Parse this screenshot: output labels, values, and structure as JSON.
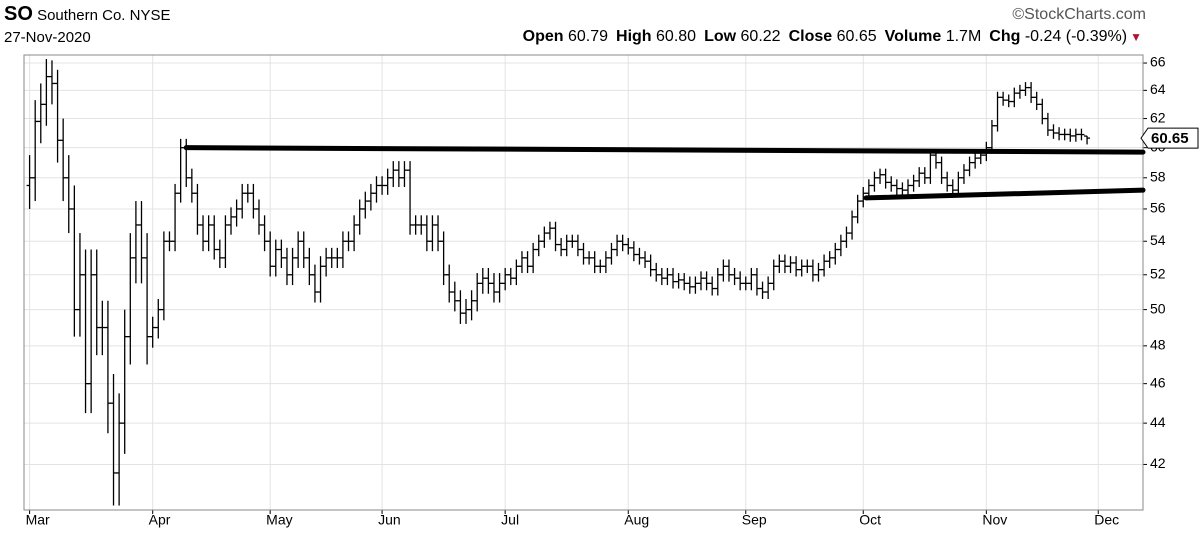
{
  "header": {
    "symbol": "SO",
    "name": "Southern Co.",
    "exchange": "NYSE",
    "source": "©StockCharts.com",
    "date": "27-Nov-2020",
    "stats": [
      {
        "label": "Open",
        "value": "60.79"
      },
      {
        "label": "High",
        "value": "60.80"
      },
      {
        "label": "Low",
        "value": "60.22"
      },
      {
        "label": "Close",
        "value": "60.65"
      },
      {
        "label": "Volume",
        "value": "1.7M"
      },
      {
        "label": "Chg",
        "value": "-0.24 (-0.39%)"
      }
    ]
  },
  "chart_data": {
    "type": "ohlc",
    "color": "#000000",
    "log_scale": true,
    "grid": true,
    "xlim": [
      -1,
      199
    ],
    "ylim": [
      39.9,
      66.6
    ],
    "yticks": [
      42,
      44,
      46,
      48,
      50,
      52,
      54,
      56,
      58,
      60,
      62,
      64,
      66
    ],
    "xticks": [
      {
        "value": 0,
        "label": "Mar"
      },
      {
        "value": 22,
        "label": "Apr"
      },
      {
        "value": 43,
        "label": "May"
      },
      {
        "value": 63,
        "label": "Jun"
      },
      {
        "value": 85,
        "label": "Jul"
      },
      {
        "value": 107,
        "label": "Aug"
      },
      {
        "value": 128,
        "label": "Sep"
      },
      {
        "value": 149,
        "label": "Oct"
      },
      {
        "value": 171,
        "label": "Nov"
      },
      {
        "value": 191,
        "label": "Dec"
      }
    ],
    "open": [
      57.5,
      58,
      61.8,
      63,
      65,
      64.5,
      60.5,
      58,
      56,
      50,
      52,
      46,
      52,
      49,
      49,
      45,
      41.6,
      44,
      48.5,
      53,
      55,
      53,
      48.5,
      49,
      50,
      54,
      54,
      57,
      60,
      58,
      57,
      55,
      54,
      55,
      53.5,
      53,
      55,
      55.5,
      56,
      57,
      57,
      56,
      55,
      54,
      52.5,
      53.5,
      53,
      52,
      53,
      54,
      53,
      52,
      51,
      52.5,
      53,
      53,
      53,
      54,
      54,
      55,
      56,
      56.5,
      57,
      57.5,
      57.5,
      58,
      58.5,
      58,
      58.5,
      55,
      55,
      55,
      54,
      55,
      54,
      52,
      51,
      50.5,
      49.8,
      50,
      50.5,
      51.5,
      51.8,
      51.5,
      51,
      51.5,
      52,
      51.8,
      52.5,
      53,
      52.5,
      53.5,
      54,
      54.5,
      54.8,
      53.8,
      53.5,
      54,
      54,
      53.5,
      53,
      53,
      52.5,
      52.5,
      53,
      53.5,
      54,
      53.8,
      53.6,
      53.2,
      53,
      52.8,
      52.3,
      52,
      51.8,
      52,
      51.6,
      51.7,
      51.5,
      51.3,
      51.5,
      51.8,
      51.5,
      51.2,
      52,
      52.5,
      52,
      51.8,
      51.5,
      51.5,
      52,
      51.2,
      51,
      51.5,
      52.5,
      52.8,
      52.5,
      52.7,
      52.3,
      52.5,
      52.5,
      52,
      52.3,
      52.8,
      53,
      53.5,
      54,
      54.5,
      55.5,
      56.5,
      57,
      57.5,
      58,
      58.2,
      57.7,
      57.5,
      57.3,
      57.2,
      57.5,
      57.8,
      58.3,
      58,
      59.5,
      59,
      58,
      57.5,
      57.2,
      58,
      58.5,
      59,
      59.3,
      59.5,
      60,
      61.5,
      63.5,
      63.3,
      63.2,
      63.8,
      64,
      64.2,
      63.5,
      63,
      62,
      61.2,
      61,
      60.9,
      60.9,
      60.8,
      60.9,
      60.79
    ],
    "high": [
      59.5,
      63.3,
      64.5,
      66.3,
      66.2,
      65.5,
      62,
      59.5,
      57.5,
      54.5,
      53.5,
      53.5,
      53.5,
      50.5,
      50.5,
      46.5,
      45.5,
      50,
      54.5,
      56.5,
      56.5,
      54.5,
      49.6,
      50.6,
      54.6,
      54.6,
      57.6,
      60.6,
      60.6,
      58.6,
      57.6,
      55.6,
      55.6,
      55.6,
      54.1,
      55.6,
      56.1,
      56.6,
      57.6,
      57.6,
      57.6,
      56.6,
      55.6,
      54.6,
      54.1,
      54.1,
      53.6,
      53.6,
      54.6,
      54.6,
      53.6,
      52.6,
      53.1,
      53.6,
      53.6,
      53.6,
      54.6,
      54.6,
      55.6,
      56.6,
      57.1,
      57.6,
      58.1,
      58.1,
      58.6,
      59.1,
      59.1,
      59.1,
      59.1,
      55.6,
      55.6,
      55.6,
      55.6,
      55.6,
      54.6,
      52.6,
      51.6,
      51.1,
      50.6,
      51.1,
      52.1,
      52.4,
      52.4,
      52.1,
      52.1,
      52.4,
      52.4,
      52.9,
      53.4,
      53.4,
      53.9,
      54.4,
      54.9,
      55.2,
      55.2,
      54.2,
      54.4,
      54.4,
      54.4,
      53.9,
      53.4,
      53.4,
      52.9,
      53.4,
      53.9,
      54.4,
      54.4,
      54.2,
      54,
      53.6,
      53.4,
      53.2,
      52.7,
      52.4,
      52.4,
      52.4,
      52.1,
      52.1,
      51.9,
      51.9,
      52.2,
      52.2,
      51.9,
      52.4,
      52.9,
      52.9,
      52.4,
      52.2,
      51.9,
      52.4,
      52.4,
      51.6,
      51.9,
      52.9,
      53.2,
      53.2,
      53.1,
      53.1,
      52.9,
      52.9,
      52.9,
      52.7,
      53.2,
      53.4,
      53.9,
      54.4,
      54.9,
      55.9,
      56.9,
      57.4,
      57.9,
      58.4,
      58.6,
      58.6,
      58.1,
      57.9,
      57.7,
      57.9,
      58.2,
      58.7,
      58.7,
      59.9,
      59.9,
      59.4,
      58.4,
      57.9,
      58.4,
      58.9,
      59.4,
      59.7,
      59.9,
      60.4,
      61.9,
      63.9,
      63.9,
      63.7,
      64.2,
      64.4,
      64.6,
      64.6,
      63.9,
      63.4,
      62.4,
      61.6,
      61.4,
      61.3,
      61.3,
      61.3,
      61.3,
      60.8
    ],
    "low": [
      56,
      56.5,
      60.3,
      61.5,
      63,
      59,
      56.5,
      54.5,
      48.5,
      48.5,
      44.5,
      44.5,
      47.5,
      47.5,
      43.5,
      40.1,
      40.1,
      42.5,
      47,
      51.5,
      51.5,
      47,
      47.9,
      48.4,
      49.4,
      53.4,
      53.4,
      56.4,
      57.4,
      56.4,
      54.4,
      53.4,
      53.4,
      52.9,
      52.4,
      52.4,
      54.4,
      54.9,
      55.4,
      56.4,
      55.4,
      54.4,
      53.4,
      51.9,
      51.9,
      52.4,
      51.4,
      51.4,
      52.4,
      52.4,
      51.4,
      50.4,
      50.4,
      51.9,
      52.4,
      52.4,
      52.4,
      53.4,
      53.4,
      54.4,
      55.4,
      55.9,
      56.4,
      56.9,
      56.9,
      57.4,
      57.4,
      57.4,
      54.4,
      54.4,
      54.4,
      53.4,
      53.4,
      53.4,
      51.4,
      50.4,
      49.9,
      49.2,
      49.2,
      49.4,
      49.9,
      50.9,
      50.9,
      50.4,
      50.4,
      51.1,
      51.4,
      51.4,
      52.1,
      52.1,
      52.1,
      53.1,
      53.6,
      54.1,
      53.4,
      53.1,
      53.1,
      53.6,
      53.1,
      52.6,
      52.6,
      52.1,
      52.1,
      52.1,
      52.6,
      53.1,
      53.4,
      53.2,
      52.8,
      52.6,
      52.4,
      51.9,
      51.6,
      51.4,
      51.4,
      51.2,
      51.2,
      51.1,
      50.9,
      50.9,
      51.1,
      51.1,
      50.8,
      50.8,
      51.6,
      51.6,
      51.4,
      51.1,
      51.1,
      51.1,
      50.8,
      50.6,
      50.6,
      51.1,
      52.1,
      52.1,
      52.1,
      51.9,
      51.9,
      52.1,
      51.6,
      51.6,
      51.9,
      52.4,
      52.6,
      53.1,
      53.6,
      54.1,
      55.1,
      56.1,
      56.6,
      57.1,
      57.6,
      57.3,
      57.1,
      56.9,
      56.8,
      56.8,
      57.1,
      57.4,
      57.6,
      57.6,
      58.6,
      57.6,
      57.1,
      56.8,
      56.8,
      57.6,
      58.1,
      58.6,
      58.9,
      59.1,
      59.6,
      61.1,
      62.9,
      62.8,
      62.8,
      63.4,
      63.6,
      63.1,
      62.6,
      61.6,
      60.8,
      60.6,
      60.5,
      60.5,
      60.4,
      60.4,
      60.5,
      60.22
    ],
    "close": [
      58,
      61.8,
      63,
      65,
      64.5,
      60.5,
      58,
      56,
      50,
      52,
      46,
      52,
      49,
      49,
      45,
      41.6,
      44,
      48.5,
      53,
      55,
      53,
      48.5,
      49,
      50,
      54,
      54,
      57,
      60,
      58,
      57,
      55,
      54,
      55,
      53.5,
      53,
      55,
      55.5,
      56,
      57,
      57,
      56,
      55,
      54,
      52.5,
      53.5,
      53,
      52,
      53,
      54,
      53,
      52,
      51,
      52.5,
      53,
      53,
      53,
      54,
      54,
      55,
      56,
      56.5,
      57,
      57.5,
      57.5,
      58,
      58.5,
      58,
      58.5,
      55,
      55,
      55,
      54,
      55,
      54,
      52,
      51,
      50.5,
      49.8,
      50,
      50.5,
      51.5,
      51.8,
      51.5,
      51,
      51.5,
      52,
      51.8,
      52.5,
      53,
      52.5,
      53.5,
      54,
      54.5,
      54.8,
      53.8,
      53.5,
      54,
      54,
      53.5,
      53,
      53,
      52.5,
      52.5,
      53,
      53.5,
      54,
      53.8,
      53.6,
      53.2,
      53,
      52.8,
      52.3,
      52,
      51.8,
      52,
      51.6,
      51.7,
      51.5,
      51.3,
      51.5,
      51.8,
      51.5,
      51.2,
      52,
      52.5,
      52,
      51.8,
      51.5,
      51.5,
      52,
      51.2,
      51,
      51.5,
      52.5,
      52.8,
      52.5,
      52.7,
      52.3,
      52.5,
      52.5,
      52,
      52.3,
      52.8,
      53,
      53.5,
      54,
      54.5,
      55.5,
      56.5,
      57,
      57.5,
      58,
      58.2,
      57.7,
      57.5,
      57.3,
      57.2,
      57.5,
      57.8,
      58.3,
      58,
      59.5,
      59,
      58,
      57.5,
      57.2,
      58,
      58.5,
      59,
      59.3,
      59.5,
      60,
      61.5,
      63.5,
      63.3,
      63.2,
      63.8,
      64,
      64.2,
      63.5,
      63,
      62,
      61.2,
      61,
      60.9,
      60.9,
      60.8,
      60.9,
      60.89,
      60.65
    ],
    "trendlines": [
      {
        "x": [
          28,
          199
        ],
        "y": [
          60.0,
          59.7
        ]
      },
      {
        "x": [
          149.5,
          199
        ],
        "y": [
          56.7,
          57.2
        ]
      }
    ]
  }
}
